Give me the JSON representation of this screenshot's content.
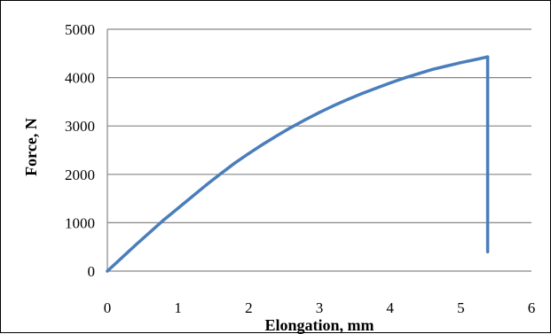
{
  "chart_data": {
    "type": "line",
    "title": "",
    "xlabel": "Elongation, mm",
    "ylabel": "Force, N",
    "xlim": [
      0,
      6
    ],
    "ylim": [
      0,
      5000
    ],
    "xticks": [
      0,
      1,
      2,
      3,
      4,
      5,
      6
    ],
    "yticks": [
      0,
      1000,
      2000,
      3000,
      4000,
      5000
    ],
    "grid": "horizontal",
    "legend": "none",
    "series": [
      {
        "color": "#4a7ebb",
        "x": [
          0,
          0.2,
          0.4,
          0.6,
          0.8,
          1.0,
          1.2,
          1.4,
          1.6,
          1.8,
          2.0,
          2.2,
          2.4,
          2.6,
          2.8,
          3.0,
          3.2,
          3.4,
          3.6,
          3.8,
          4.0,
          4.2,
          4.4,
          4.6,
          4.8,
          5.0,
          5.2,
          5.35,
          5.38,
          5.38
        ],
        "y": [
          0,
          270,
          540,
          800,
          1060,
          1300,
          1540,
          1780,
          2010,
          2230,
          2430,
          2620,
          2800,
          2970,
          3130,
          3280,
          3420,
          3550,
          3670,
          3780,
          3890,
          3990,
          4080,
          4170,
          4240,
          4310,
          4370,
          4420,
          4430,
          400
        ]
      }
    ]
  },
  "style": {
    "line_color": "#4a7ebb",
    "grid_color": "#868686",
    "axis_color": "#868686"
  }
}
